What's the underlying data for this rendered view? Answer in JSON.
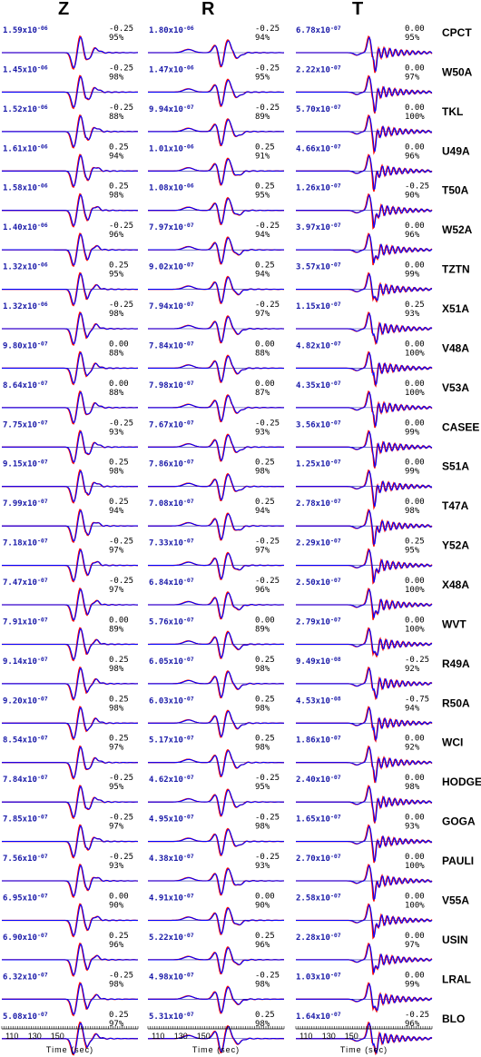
{
  "chart_data": {
    "type": "line",
    "components": [
      "Z",
      "R",
      "T"
    ],
    "xlabel": "Time (sec)",
    "x_ticks": [
      110,
      130,
      150
    ],
    "series_colors": {
      "observed": "#ff0000",
      "synthetic": "#0000ff"
    },
    "stations": [
      {
        "name": "CPCT",
        "Z": {
          "amp": "1.59",
          "exp": "-06",
          "shift": "-0.25",
          "fit": "95%"
        },
        "R": {
          "amp": "1.80",
          "exp": "-06",
          "shift": "-0.25",
          "fit": "94%"
        },
        "T": {
          "amp": "6.78",
          "exp": "-07",
          "shift": "0.00",
          "fit": "95%"
        }
      },
      {
        "name": "W50A",
        "Z": {
          "amp": "1.45",
          "exp": "-06",
          "shift": "-0.25",
          "fit": "98%"
        },
        "R": {
          "amp": "1.47",
          "exp": "-06",
          "shift": "-0.25",
          "fit": "95%"
        },
        "T": {
          "amp": "2.22",
          "exp": "-07",
          "shift": "0.00",
          "fit": "97%"
        }
      },
      {
        "name": "TKL",
        "Z": {
          "amp": "1.52",
          "exp": "-06",
          "shift": "-0.25",
          "fit": "88%"
        },
        "R": {
          "amp": "9.94",
          "exp": "-07",
          "shift": "-0.25",
          "fit": "89%"
        },
        "T": {
          "amp": "5.70",
          "exp": "-07",
          "shift": "0.00",
          "fit": "100%"
        }
      },
      {
        "name": "U49A",
        "Z": {
          "amp": "1.61",
          "exp": "-06",
          "shift": "0.25",
          "fit": "94%"
        },
        "R": {
          "amp": "1.01",
          "exp": "-06",
          "shift": "0.25",
          "fit": "91%"
        },
        "T": {
          "amp": "4.66",
          "exp": "-07",
          "shift": "0.00",
          "fit": "96%"
        }
      },
      {
        "name": "T50A",
        "Z": {
          "amp": "1.58",
          "exp": "-06",
          "shift": "0.25",
          "fit": "98%"
        },
        "R": {
          "amp": "1.08",
          "exp": "-06",
          "shift": "0.25",
          "fit": "95%"
        },
        "T": {
          "amp": "1.26",
          "exp": "-07",
          "shift": "-0.25",
          "fit": "90%"
        }
      },
      {
        "name": "W52A",
        "Z": {
          "amp": "1.40",
          "exp": "-06",
          "shift": "-0.25",
          "fit": "96%"
        },
        "R": {
          "amp": "7.97",
          "exp": "-07",
          "shift": "-0.25",
          "fit": "94%"
        },
        "T": {
          "amp": "3.97",
          "exp": "-07",
          "shift": "0.00",
          "fit": "96%"
        }
      },
      {
        "name": "TZTN",
        "Z": {
          "amp": "1.32",
          "exp": "-06",
          "shift": "0.25",
          "fit": "95%"
        },
        "R": {
          "amp": "9.02",
          "exp": "-07",
          "shift": "0.25",
          "fit": "94%"
        },
        "T": {
          "amp": "3.57",
          "exp": "-07",
          "shift": "0.00",
          "fit": "99%"
        }
      },
      {
        "name": "X51A",
        "Z": {
          "amp": "1.32",
          "exp": "-06",
          "shift": "-0.25",
          "fit": "98%"
        },
        "R": {
          "amp": "7.94",
          "exp": "-07",
          "shift": "-0.25",
          "fit": "97%"
        },
        "T": {
          "amp": "1.15",
          "exp": "-07",
          "shift": "0.25",
          "fit": "93%"
        }
      },
      {
        "name": "V48A",
        "Z": {
          "amp": "9.80",
          "exp": "-07",
          "shift": "0.00",
          "fit": "88%"
        },
        "R": {
          "amp": "7.84",
          "exp": "-07",
          "shift": "0.00",
          "fit": "88%"
        },
        "T": {
          "amp": "4.82",
          "exp": "-07",
          "shift": "0.00",
          "fit": "100%"
        }
      },
      {
        "name": "V53A",
        "Z": {
          "amp": "8.64",
          "exp": "-07",
          "shift": "0.00",
          "fit": "88%"
        },
        "R": {
          "amp": "7.98",
          "exp": "-07",
          "shift": "0.00",
          "fit": "87%"
        },
        "T": {
          "amp": "4.35",
          "exp": "-07",
          "shift": "0.00",
          "fit": "100%"
        }
      },
      {
        "name": "CASEE",
        "Z": {
          "amp": "7.75",
          "exp": "-07",
          "shift": "-0.25",
          "fit": "93%"
        },
        "R": {
          "amp": "7.67",
          "exp": "-07",
          "shift": "-0.25",
          "fit": "93%"
        },
        "T": {
          "amp": "3.56",
          "exp": "-07",
          "shift": "0.00",
          "fit": "99%"
        }
      },
      {
        "name": "S51A",
        "Z": {
          "amp": "9.15",
          "exp": "-07",
          "shift": "0.25",
          "fit": "98%"
        },
        "R": {
          "amp": "7.86",
          "exp": "-07",
          "shift": "0.25",
          "fit": "98%"
        },
        "T": {
          "amp": "1.25",
          "exp": "-07",
          "shift": "0.00",
          "fit": "99%"
        }
      },
      {
        "name": "T47A",
        "Z": {
          "amp": "7.99",
          "exp": "-07",
          "shift": "0.25",
          "fit": "94%"
        },
        "R": {
          "amp": "7.08",
          "exp": "-07",
          "shift": "0.25",
          "fit": "94%"
        },
        "T": {
          "amp": "2.78",
          "exp": "-07",
          "shift": "0.00",
          "fit": "98%"
        }
      },
      {
        "name": "Y52A",
        "Z": {
          "amp": "7.18",
          "exp": "-07",
          "shift": "-0.25",
          "fit": "97%"
        },
        "R": {
          "amp": "7.33",
          "exp": "-07",
          "shift": "-0.25",
          "fit": "97%"
        },
        "T": {
          "amp": "2.29",
          "exp": "-07",
          "shift": "0.25",
          "fit": "95%"
        }
      },
      {
        "name": "X48A",
        "Z": {
          "amp": "7.47",
          "exp": "-07",
          "shift": "-0.25",
          "fit": "97%"
        },
        "R": {
          "amp": "6.84",
          "exp": "-07",
          "shift": "-0.25",
          "fit": "96%"
        },
        "T": {
          "amp": "2.50",
          "exp": "-07",
          "shift": "0.00",
          "fit": "100%"
        }
      },
      {
        "name": "WVT",
        "Z": {
          "amp": "7.91",
          "exp": "-07",
          "shift": "0.00",
          "fit": "89%"
        },
        "R": {
          "amp": "5.76",
          "exp": "-07",
          "shift": "0.00",
          "fit": "89%"
        },
        "T": {
          "amp": "2.79",
          "exp": "-07",
          "shift": "0.00",
          "fit": "100%"
        }
      },
      {
        "name": "R49A",
        "Z": {
          "amp": "9.14",
          "exp": "-07",
          "shift": "0.25",
          "fit": "98%"
        },
        "R": {
          "amp": "6.05",
          "exp": "-07",
          "shift": "0.25",
          "fit": "98%"
        },
        "T": {
          "amp": "9.49",
          "exp": "-08",
          "shift": "-0.25",
          "fit": "92%"
        }
      },
      {
        "name": "R50A",
        "Z": {
          "amp": "9.20",
          "exp": "-07",
          "shift": "0.25",
          "fit": "98%"
        },
        "R": {
          "amp": "6.03",
          "exp": "-07",
          "shift": "0.25",
          "fit": "98%"
        },
        "T": {
          "amp": "4.53",
          "exp": "-08",
          "shift": "-0.75",
          "fit": "94%"
        }
      },
      {
        "name": "WCI",
        "Z": {
          "amp": "8.54",
          "exp": "-07",
          "shift": "0.25",
          "fit": "97%"
        },
        "R": {
          "amp": "5.17",
          "exp": "-07",
          "shift": "0.25",
          "fit": "98%"
        },
        "T": {
          "amp": "1.86",
          "exp": "-07",
          "shift": "0.00",
          "fit": "92%"
        }
      },
      {
        "name": "HODGE",
        "Z": {
          "amp": "7.84",
          "exp": "-07",
          "shift": "-0.25",
          "fit": "95%"
        },
        "R": {
          "amp": "4.62",
          "exp": "-07",
          "shift": "-0.25",
          "fit": "95%"
        },
        "T": {
          "amp": "2.40",
          "exp": "-07",
          "shift": "0.00",
          "fit": "98%"
        }
      },
      {
        "name": "GOGA",
        "Z": {
          "amp": "7.85",
          "exp": "-07",
          "shift": "-0.25",
          "fit": "97%"
        },
        "R": {
          "amp": "4.95",
          "exp": "-07",
          "shift": "-0.25",
          "fit": "98%"
        },
        "T": {
          "amp": "1.65",
          "exp": "-07",
          "shift": "0.00",
          "fit": "93%"
        }
      },
      {
        "name": "PAULI",
        "Z": {
          "amp": "7.56",
          "exp": "-07",
          "shift": "-0.25",
          "fit": "93%"
        },
        "R": {
          "amp": "4.38",
          "exp": "-07",
          "shift": "-0.25",
          "fit": "93%"
        },
        "T": {
          "amp": "2.70",
          "exp": "-07",
          "shift": "0.00",
          "fit": "100%"
        }
      },
      {
        "name": "V55A",
        "Z": {
          "amp": "6.95",
          "exp": "-07",
          "shift": "0.00",
          "fit": "90%"
        },
        "R": {
          "amp": "4.91",
          "exp": "-07",
          "shift": "0.00",
          "fit": "90%"
        },
        "T": {
          "amp": "2.58",
          "exp": "-07",
          "shift": "0.00",
          "fit": "100%"
        }
      },
      {
        "name": "USIN",
        "Z": {
          "amp": "6.90",
          "exp": "-07",
          "shift": "0.25",
          "fit": "96%"
        },
        "R": {
          "amp": "5.22",
          "exp": "-07",
          "shift": "0.25",
          "fit": "96%"
        },
        "T": {
          "amp": "2.28",
          "exp": "-07",
          "shift": "0.00",
          "fit": "97%"
        }
      },
      {
        "name": "LRAL",
        "Z": {
          "amp": "6.32",
          "exp": "-07",
          "shift": "-0.25",
          "fit": "98%"
        },
        "R": {
          "amp": "4.98",
          "exp": "-07",
          "shift": "-0.25",
          "fit": "98%"
        },
        "T": {
          "amp": "1.03",
          "exp": "-07",
          "shift": "0.00",
          "fit": "99%"
        }
      },
      {
        "name": "BLO",
        "Z": {
          "amp": "5.08",
          "exp": "-07",
          "shift": "0.25",
          "fit": "97%"
        },
        "R": {
          "amp": "5.31",
          "exp": "-07",
          "shift": "0.25",
          "fit": "98%"
        },
        "T": {
          "amp": "1.64",
          "exp": "-07",
          "shift": "-0.25",
          "fit": "96%"
        }
      }
    ]
  }
}
